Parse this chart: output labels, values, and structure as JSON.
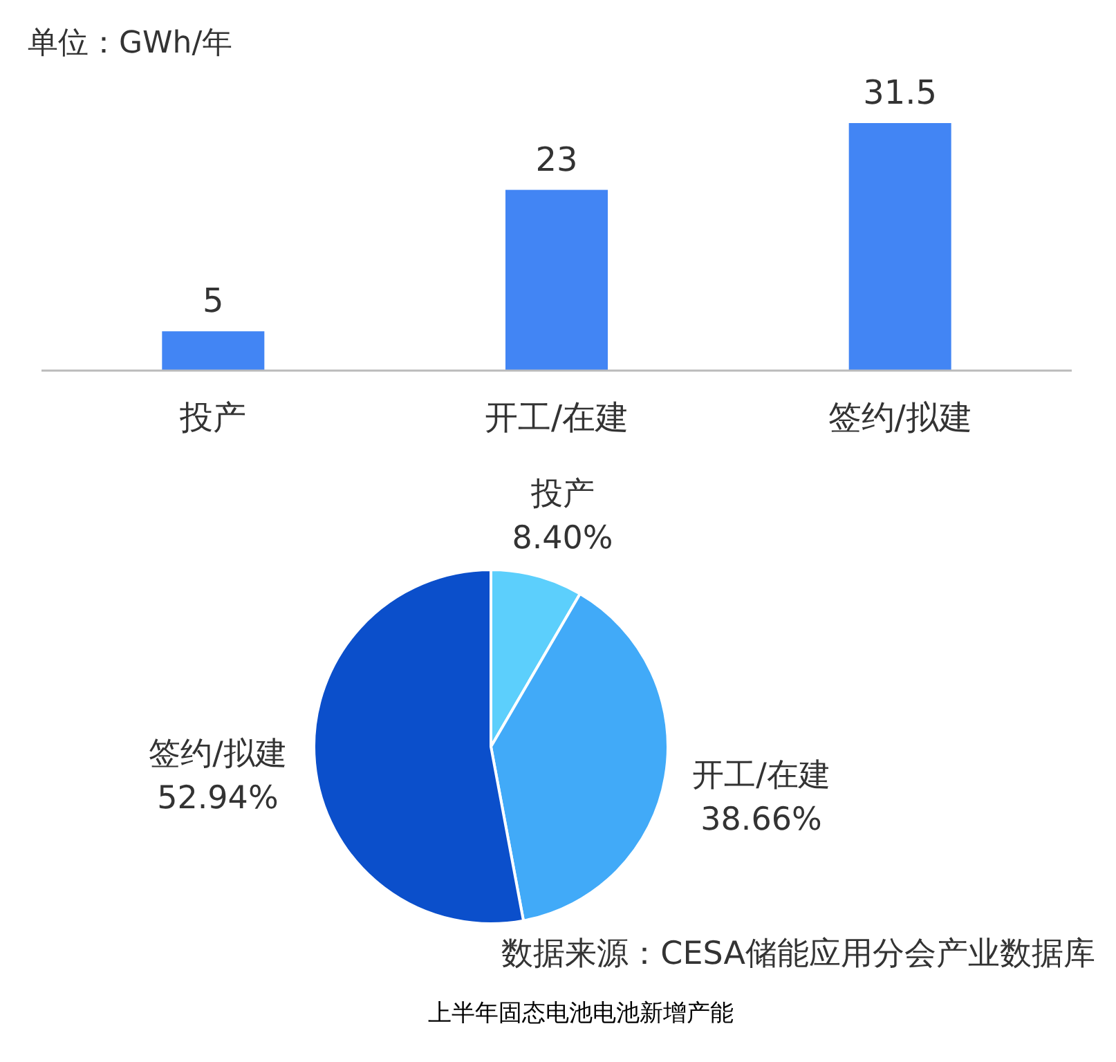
{
  "chart_data": [
    {
      "type": "bar",
      "categories": [
        "投产",
        "开工/在建",
        "签约/拟建"
      ],
      "values": [
        5,
        23,
        31.5
      ],
      "color": "#4285f4",
      "data_labels": true,
      "annotations": [
        "单位：GWh/年"
      ]
    },
    {
      "type": "pie",
      "categories": [
        "投产",
        "开工/在建",
        "签约/拟建"
      ],
      "values": [
        8.4,
        38.66,
        52.94
      ],
      "colors": [
        "#5ccffc",
        "#41aaf8",
        "#0b4fcb"
      ],
      "value_labels": [
        "8.40%",
        "38.66%",
        "52.94%"
      ],
      "annotations": [
        "数据来源：CESA储能应用分会产业数据库",
        "上半年固态电池电池新增产能"
      ]
    }
  ]
}
